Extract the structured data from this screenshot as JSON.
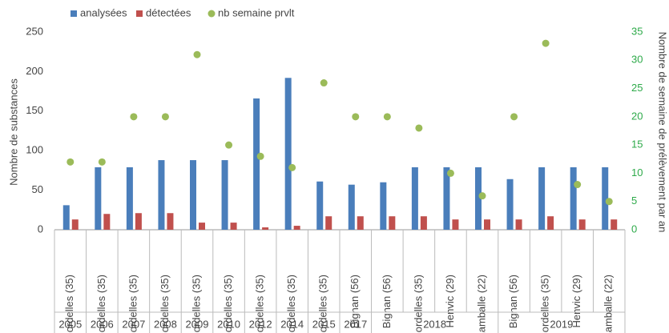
{
  "chart_data": {
    "type": "bar",
    "y_label": "Nombre de substances",
    "y2_label": "Nombre de semaine de prélèvement par an",
    "categories": [
      "Mordelles (35)",
      "Mordelles (35)",
      "Mordelles (35)",
      "Mordelles (35)",
      "Mordelles (35)",
      "Mordelles (35)",
      "Mordelles (35)",
      "Mordelles (35)",
      "Mordelles (35)",
      "Bignan (56)",
      "Bignan (56)",
      "Mordelles (35)",
      "Henvic (29)",
      "Lamballe (22)",
      "Bignan (56)",
      "Mordelles (35)",
      "Henvic (29)",
      "Lamballe (22)"
    ],
    "groups": [
      2005,
      2006,
      2007,
      2008,
      2009,
      2010,
      2012,
      2014,
      2015,
      2017,
      2018,
      null,
      null,
      null,
      2019,
      null,
      null,
      null
    ],
    "series": [
      {
        "name": "analysées",
        "color": "#4a7ebb",
        "type": "bar",
        "values": [
          31,
          79,
          79,
          88,
          88,
          88,
          166,
          192,
          61,
          57,
          60,
          79,
          79,
          79,
          64,
          79,
          79,
          79
        ]
      },
      {
        "name": "détectées",
        "color": "#c0504d",
        "type": "bar",
        "values": [
          13,
          20,
          21,
          21,
          9,
          9,
          3,
          5,
          17,
          17,
          17,
          17,
          13,
          13,
          13,
          17,
          13,
          13
        ]
      },
      {
        "name": "nb semaine prvlt",
        "color": "#9bbb59",
        "type": "scatter",
        "axis": "y2",
        "values": [
          12,
          12,
          20,
          20,
          31,
          15,
          13,
          11,
          26,
          20,
          20,
          18,
          10,
          6,
          20,
          33,
          8,
          5
        ]
      }
    ],
    "ylim": [
      0,
      250
    ],
    "yticks": [
      0,
      50,
      100,
      150,
      200,
      250
    ],
    "y2lim": [
      0,
      35
    ],
    "y2ticks": [
      0,
      5,
      10,
      15,
      20,
      25,
      30,
      35
    ],
    "y2_color": "#2eaa4a",
    "legend": "top"
  }
}
